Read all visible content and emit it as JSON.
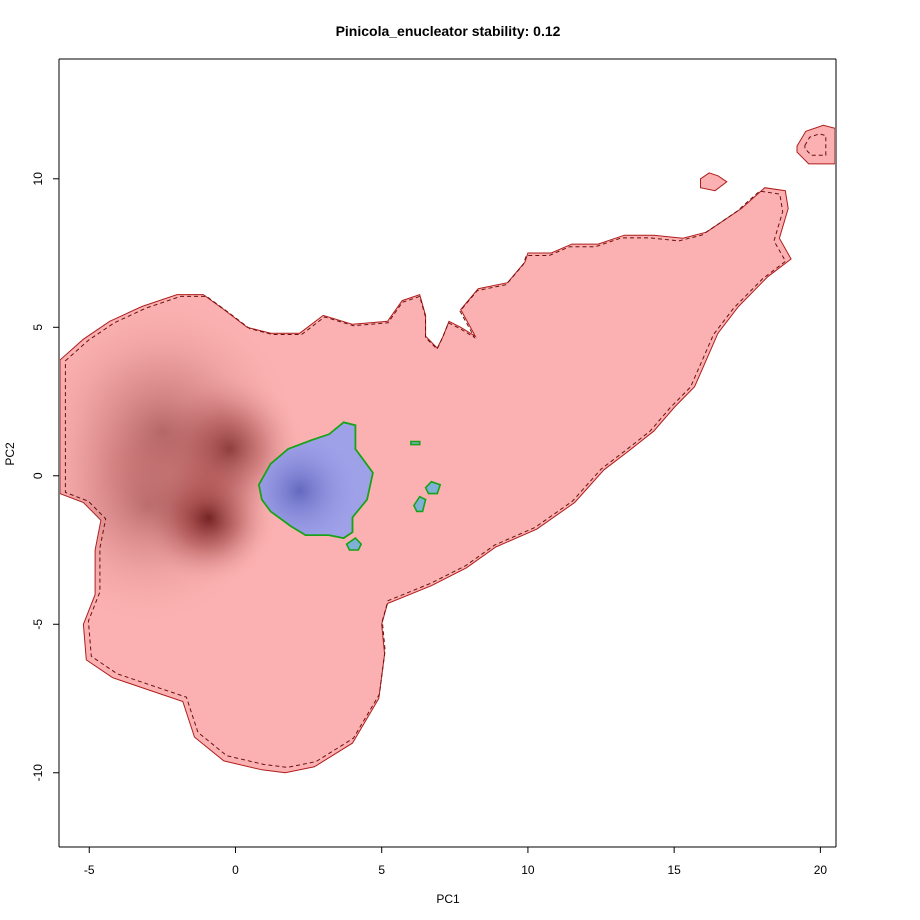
{
  "chart_data": {
    "type": "heatmap",
    "title": "Pinicola_enucleator stability: 0.12",
    "xlabel": "PC1",
    "ylabel": "PC2",
    "xlim": [
      -6,
      20.5
    ],
    "ylim": [
      -12.5,
      14
    ],
    "x_ticks": [
      -5,
      0,
      5,
      10,
      15,
      20
    ],
    "y_ticks": [
      -10,
      -5,
      0,
      5,
      10
    ],
    "x_tick_labels": [
      "-5",
      "0",
      "5",
      "10",
      "15",
      "20"
    ],
    "y_tick_labels": [
      "-10",
      "-5",
      "0",
      "5",
      "10"
    ],
    "grid": false,
    "layers": [
      {
        "name": "niche",
        "fill": "#fbb1b1",
        "outline": "#b01d1d",
        "polygon": [
          [
            -6,
            3.9
          ],
          [
            -5.2,
            4.6
          ],
          [
            -4.3,
            5.2
          ],
          [
            -3.2,
            5.7
          ],
          [
            -2.0,
            6.1
          ],
          [
            -1.1,
            6.1
          ],
          [
            -0.4,
            5.6
          ],
          [
            0.4,
            5.0
          ],
          [
            1.2,
            4.8
          ],
          [
            2.2,
            4.8
          ],
          [
            3.0,
            5.4
          ],
          [
            4.0,
            5.1
          ],
          [
            5.2,
            5.2
          ],
          [
            5.7,
            5.9
          ],
          [
            6.3,
            6.1
          ],
          [
            6.5,
            5.4
          ],
          [
            6.5,
            4.7
          ],
          [
            6.9,
            4.3
          ],
          [
            7.1,
            4.7
          ],
          [
            7.3,
            5.2
          ],
          [
            7.7,
            5.0
          ],
          [
            8.2,
            4.7
          ],
          [
            7.7,
            5.6
          ],
          [
            8.3,
            6.3
          ],
          [
            9.3,
            6.5
          ],
          [
            9.9,
            7.2
          ],
          [
            10.0,
            7.5
          ],
          [
            10.8,
            7.5
          ],
          [
            11.5,
            7.8
          ],
          [
            12.4,
            7.8
          ],
          [
            13.3,
            8.1
          ],
          [
            14.3,
            8.1
          ],
          [
            15.3,
            8.0
          ],
          [
            16.1,
            8.2
          ],
          [
            17.3,
            9.0
          ],
          [
            18.1,
            9.7
          ],
          [
            18.8,
            9.6
          ],
          [
            18.9,
            9.0
          ],
          [
            18.6,
            8.0
          ],
          [
            19.0,
            7.3
          ],
          [
            18.2,
            6.7
          ],
          [
            17.2,
            5.7
          ],
          [
            16.5,
            4.8
          ],
          [
            15.7,
            3.0
          ],
          [
            15.0,
            2.3
          ],
          [
            14.3,
            1.5
          ],
          [
            13.4,
            0.8
          ],
          [
            12.6,
            0.2
          ],
          [
            11.6,
            -0.9
          ],
          [
            10.3,
            -1.8
          ],
          [
            8.9,
            -2.4
          ],
          [
            7.9,
            -3.1
          ],
          [
            6.7,
            -3.7
          ],
          [
            5.2,
            -4.3
          ],
          [
            5.0,
            -5.0
          ],
          [
            5.1,
            -6.0
          ],
          [
            4.9,
            -7.5
          ],
          [
            4.0,
            -9.0
          ],
          [
            2.7,
            -9.8
          ],
          [
            1.7,
            -10.0
          ],
          [
            0.9,
            -9.9
          ],
          [
            -0.4,
            -9.6
          ],
          [
            -1.4,
            -8.8
          ],
          [
            -1.8,
            -7.6
          ],
          [
            -3.0,
            -7.2
          ],
          [
            -4.2,
            -6.8
          ],
          [
            -5.1,
            -6.2
          ],
          [
            -5.2,
            -5.0
          ],
          [
            -4.8,
            -4.0
          ],
          [
            -4.8,
            -2.5
          ],
          [
            -4.6,
            -1.5
          ],
          [
            -5.2,
            -0.9
          ],
          [
            -6,
            -0.6
          ]
        ]
      },
      {
        "name": "niche-island-top-right",
        "fill": "#fbb1b1",
        "outline": "#b01d1d",
        "polygon": [
          [
            19.2,
            11.1
          ],
          [
            19.5,
            11.6
          ],
          [
            20.1,
            11.8
          ],
          [
            20.5,
            11.7
          ],
          [
            20.5,
            10.5
          ],
          [
            19.6,
            10.5
          ],
          [
            19.2,
            10.9
          ]
        ]
      },
      {
        "name": "niche-island-small",
        "fill": "#fbb1b1",
        "outline": "#b01d1d",
        "polygon": [
          [
            15.9,
            10.0
          ],
          [
            16.2,
            10.2
          ],
          [
            16.5,
            10.1
          ],
          [
            16.8,
            9.9
          ],
          [
            16.4,
            9.6
          ],
          [
            15.9,
            9.7
          ]
        ]
      },
      {
        "name": "stability",
        "fill": "#9ea0e8",
        "outline": "#17a317",
        "polygon": [
          [
            0.8,
            -0.3
          ],
          [
            1.2,
            0.4
          ],
          [
            1.8,
            0.9
          ],
          [
            2.6,
            1.2
          ],
          [
            3.2,
            1.4
          ],
          [
            3.7,
            1.8
          ],
          [
            4.1,
            1.7
          ],
          [
            4.1,
            0.9
          ],
          [
            4.4,
            0.5
          ],
          [
            4.7,
            0.1
          ],
          [
            4.5,
            -0.8
          ],
          [
            4.0,
            -1.4
          ],
          [
            4.0,
            -1.9
          ],
          [
            3.7,
            -2.1
          ],
          [
            3.2,
            -2.0
          ],
          [
            2.4,
            -2.0
          ],
          [
            1.9,
            -1.7
          ],
          [
            1.2,
            -1.2
          ],
          [
            0.9,
            -0.8
          ]
        ]
      },
      {
        "name": "stability-fragment-1",
        "fill": "#7fb0d8",
        "outline": "#17a317",
        "polygon": [
          [
            3.8,
            -2.3
          ],
          [
            4.1,
            -2.1
          ],
          [
            4.3,
            -2.3
          ],
          [
            4.2,
            -2.5
          ],
          [
            3.9,
            -2.5
          ]
        ]
      },
      {
        "name": "stability-fragment-2",
        "fill": "#7fb0d8",
        "outline": "#17a317",
        "polygon": [
          [
            6.5,
            -0.4
          ],
          [
            6.7,
            -0.2
          ],
          [
            7.0,
            -0.3
          ],
          [
            6.9,
            -0.6
          ],
          [
            6.6,
            -0.6
          ]
        ]
      },
      {
        "name": "stability-fragment-3",
        "fill": "#7fb0d8",
        "outline": "#17a317",
        "polygon": [
          [
            6.1,
            -1.0
          ],
          [
            6.3,
            -0.7
          ],
          [
            6.5,
            -0.8
          ],
          [
            6.4,
            -1.2
          ],
          [
            6.2,
            -1.2
          ]
        ]
      },
      {
        "name": "stability-fragment-4",
        "fill": "#7fb0d8",
        "outline": "#17a317",
        "polygon": [
          [
            6.0,
            1.15
          ],
          [
            6.3,
            1.15
          ],
          [
            6.3,
            1.05
          ],
          [
            6.0,
            1.05
          ]
        ]
      }
    ],
    "density_peaks": [
      {
        "x": -0.9,
        "y": -1.4,
        "weight": 1.0,
        "spread": 0.9
      },
      {
        "x": -0.2,
        "y": 0.9,
        "weight": 0.75,
        "spread": 1.0
      },
      {
        "x": -2.5,
        "y": 1.5,
        "weight": 0.45,
        "spread": 1.8
      },
      {
        "x": -3.0,
        "y": -1.0,
        "weight": 0.35,
        "spread": 1.6
      }
    ]
  }
}
